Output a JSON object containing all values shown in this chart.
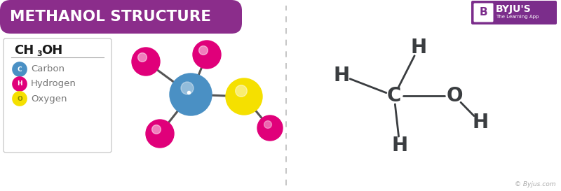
{
  "title": "METHANOL STRUCTURE",
  "title_bg": "#8B2D8B",
  "title_color": "#FFFFFF",
  "bg_color": "#FFFFFF",
  "legend_items": [
    {
      "label": "Carbon",
      "color": "#4A90C4",
      "letter": "C"
    },
    {
      "label": "Hydrogen",
      "color": "#E0007A",
      "letter": "H"
    },
    {
      "label": "Oxygen",
      "color": "#F5E000",
      "letter": "O"
    }
  ],
  "atom_colors": {
    "carbon": "#4A90C4",
    "hydrogen": "#E0007A",
    "oxygen": "#F5E000"
  },
  "bond_color": "#555555",
  "struct_color": "#3A3D40",
  "byju_purple": "#7B2D8B",
  "copyright_text": "© Byjus.com",
  "byju_logo_text": "BYJU'S",
  "byju_sub": "The Learning App"
}
